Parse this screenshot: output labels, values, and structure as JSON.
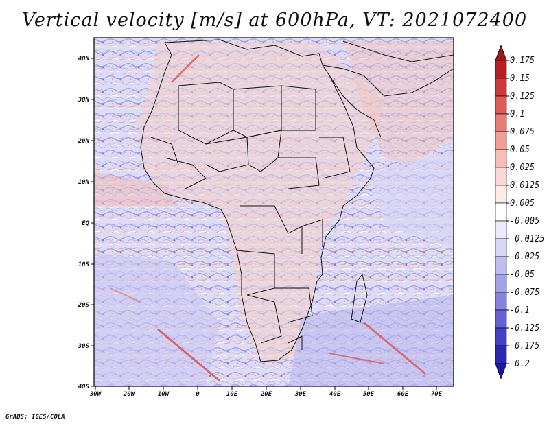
{
  "title": "Vertical velocity [m/s] at 600hPa, VT: 2021072400",
  "credit": "GrADS: IGES/COLA",
  "map": {
    "region": "Africa",
    "lon_range": [
      -30,
      75
    ],
    "lat_range": [
      -40,
      45
    ],
    "lat_labels": [
      "40N",
      "30N",
      "20N",
      "10N",
      "EQ",
      "10S",
      "20S",
      "30S",
      "40S"
    ],
    "lat_values": [
      40,
      30,
      20,
      10,
      0,
      -10,
      -20,
      -30,
      -40
    ],
    "lon_labels": [
      "30W",
      "20W",
      "10W",
      "0",
      "10E",
      "20E",
      "30E",
      "40E",
      "50E",
      "60E",
      "70E"
    ],
    "lon_values": [
      -30,
      -20,
      -10,
      0,
      10,
      20,
      30,
      40,
      50,
      60,
      70
    ]
  },
  "colorbar": {
    "labels": [
      "0.175",
      "0.15",
      "0.125",
      "0.1",
      "0.075",
      "0.05",
      "0.025",
      "0.0125",
      "0.005",
      "-0.005",
      "-0.0125",
      "-0.025",
      "-0.05",
      "-0.075",
      "-0.1",
      "-0.125",
      "-0.175",
      "-0.2"
    ],
    "colors": [
      "#b81f23",
      "#cd3a39",
      "#de5a55",
      "#e97c76",
      "#f29e98",
      "#f7bdb8",
      "#fbd8d4",
      "#fdebe8",
      "#ffffff",
      "#eceaf9",
      "#d8d6f3",
      "#bfbdef",
      "#a3a1e8",
      "#8583e0",
      "#6562d5",
      "#4441c6",
      "#2a27b2"
    ],
    "top_arrow_color": "#a1151b",
    "bottom_arrow_color": "#1e1a9e"
  }
}
